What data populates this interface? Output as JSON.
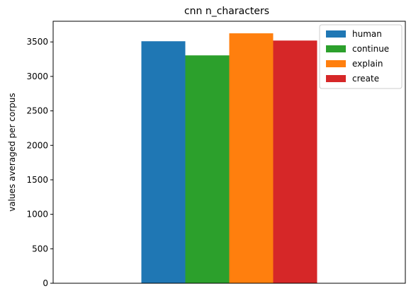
{
  "chart_data": {
    "type": "bar",
    "title": "cnn n_characters",
    "xlabel": "",
    "ylabel": "values averaged per corpus",
    "ylim": [
      0,
      3800
    ],
    "yticks": [
      0,
      500,
      1000,
      1500,
      2000,
      2500,
      3000,
      3500
    ],
    "categories": [
      ""
    ],
    "series": [
      {
        "name": "human",
        "values": [
          3510
        ],
        "color": "#1f77b4"
      },
      {
        "name": "continue",
        "values": [
          3305
        ],
        "color": "#2ca02c"
      },
      {
        "name": "explain",
        "values": [
          3625
        ],
        "color": "#ff7f0e"
      },
      {
        "name": "create",
        "values": [
          3520
        ],
        "color": "#d62728"
      }
    ],
    "legend_position": "top-right",
    "grid": false
  }
}
